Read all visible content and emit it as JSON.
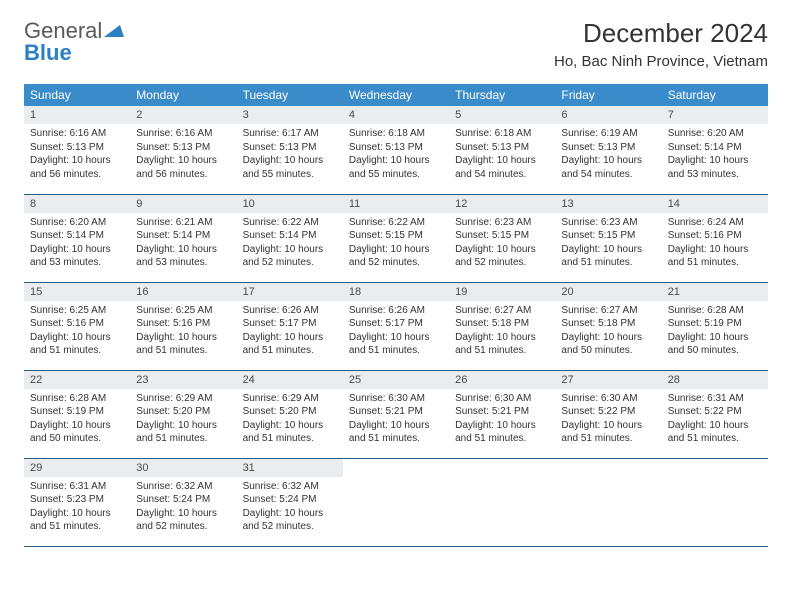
{
  "logo": {
    "text1": "General",
    "text2": "Blue",
    "color_general": "#5a5a5a",
    "color_blue": "#2b7fc3"
  },
  "header": {
    "month_title": "December 2024",
    "location": "Ho, Bac Ninh Province, Vietnam"
  },
  "colors": {
    "header_bg": "#3a8bc9",
    "header_text": "#ffffff",
    "daynum_bg": "#e9edf0",
    "row_border": "#2b5f8a",
    "body_text": "#333333"
  },
  "weekdays": [
    "Sunday",
    "Monday",
    "Tuesday",
    "Wednesday",
    "Thursday",
    "Friday",
    "Saturday"
  ],
  "days": [
    {
      "n": "1",
      "sunrise": "Sunrise: 6:16 AM",
      "sunset": "Sunset: 5:13 PM",
      "daylight": "Daylight: 10 hours and 56 minutes."
    },
    {
      "n": "2",
      "sunrise": "Sunrise: 6:16 AM",
      "sunset": "Sunset: 5:13 PM",
      "daylight": "Daylight: 10 hours and 56 minutes."
    },
    {
      "n": "3",
      "sunrise": "Sunrise: 6:17 AM",
      "sunset": "Sunset: 5:13 PM",
      "daylight": "Daylight: 10 hours and 55 minutes."
    },
    {
      "n": "4",
      "sunrise": "Sunrise: 6:18 AM",
      "sunset": "Sunset: 5:13 PM",
      "daylight": "Daylight: 10 hours and 55 minutes."
    },
    {
      "n": "5",
      "sunrise": "Sunrise: 6:18 AM",
      "sunset": "Sunset: 5:13 PM",
      "daylight": "Daylight: 10 hours and 54 minutes."
    },
    {
      "n": "6",
      "sunrise": "Sunrise: 6:19 AM",
      "sunset": "Sunset: 5:13 PM",
      "daylight": "Daylight: 10 hours and 54 minutes."
    },
    {
      "n": "7",
      "sunrise": "Sunrise: 6:20 AM",
      "sunset": "Sunset: 5:14 PM",
      "daylight": "Daylight: 10 hours and 53 minutes."
    },
    {
      "n": "8",
      "sunrise": "Sunrise: 6:20 AM",
      "sunset": "Sunset: 5:14 PM",
      "daylight": "Daylight: 10 hours and 53 minutes."
    },
    {
      "n": "9",
      "sunrise": "Sunrise: 6:21 AM",
      "sunset": "Sunset: 5:14 PM",
      "daylight": "Daylight: 10 hours and 53 minutes."
    },
    {
      "n": "10",
      "sunrise": "Sunrise: 6:22 AM",
      "sunset": "Sunset: 5:14 PM",
      "daylight": "Daylight: 10 hours and 52 minutes."
    },
    {
      "n": "11",
      "sunrise": "Sunrise: 6:22 AM",
      "sunset": "Sunset: 5:15 PM",
      "daylight": "Daylight: 10 hours and 52 minutes."
    },
    {
      "n": "12",
      "sunrise": "Sunrise: 6:23 AM",
      "sunset": "Sunset: 5:15 PM",
      "daylight": "Daylight: 10 hours and 52 minutes."
    },
    {
      "n": "13",
      "sunrise": "Sunrise: 6:23 AM",
      "sunset": "Sunset: 5:15 PM",
      "daylight": "Daylight: 10 hours and 51 minutes."
    },
    {
      "n": "14",
      "sunrise": "Sunrise: 6:24 AM",
      "sunset": "Sunset: 5:16 PM",
      "daylight": "Daylight: 10 hours and 51 minutes."
    },
    {
      "n": "15",
      "sunrise": "Sunrise: 6:25 AM",
      "sunset": "Sunset: 5:16 PM",
      "daylight": "Daylight: 10 hours and 51 minutes."
    },
    {
      "n": "16",
      "sunrise": "Sunrise: 6:25 AM",
      "sunset": "Sunset: 5:16 PM",
      "daylight": "Daylight: 10 hours and 51 minutes."
    },
    {
      "n": "17",
      "sunrise": "Sunrise: 6:26 AM",
      "sunset": "Sunset: 5:17 PM",
      "daylight": "Daylight: 10 hours and 51 minutes."
    },
    {
      "n": "18",
      "sunrise": "Sunrise: 6:26 AM",
      "sunset": "Sunset: 5:17 PM",
      "daylight": "Daylight: 10 hours and 51 minutes."
    },
    {
      "n": "19",
      "sunrise": "Sunrise: 6:27 AM",
      "sunset": "Sunset: 5:18 PM",
      "daylight": "Daylight: 10 hours and 51 minutes."
    },
    {
      "n": "20",
      "sunrise": "Sunrise: 6:27 AM",
      "sunset": "Sunset: 5:18 PM",
      "daylight": "Daylight: 10 hours and 50 minutes."
    },
    {
      "n": "21",
      "sunrise": "Sunrise: 6:28 AM",
      "sunset": "Sunset: 5:19 PM",
      "daylight": "Daylight: 10 hours and 50 minutes."
    },
    {
      "n": "22",
      "sunrise": "Sunrise: 6:28 AM",
      "sunset": "Sunset: 5:19 PM",
      "daylight": "Daylight: 10 hours and 50 minutes."
    },
    {
      "n": "23",
      "sunrise": "Sunrise: 6:29 AM",
      "sunset": "Sunset: 5:20 PM",
      "daylight": "Daylight: 10 hours and 51 minutes."
    },
    {
      "n": "24",
      "sunrise": "Sunrise: 6:29 AM",
      "sunset": "Sunset: 5:20 PM",
      "daylight": "Daylight: 10 hours and 51 minutes."
    },
    {
      "n": "25",
      "sunrise": "Sunrise: 6:30 AM",
      "sunset": "Sunset: 5:21 PM",
      "daylight": "Daylight: 10 hours and 51 minutes."
    },
    {
      "n": "26",
      "sunrise": "Sunrise: 6:30 AM",
      "sunset": "Sunset: 5:21 PM",
      "daylight": "Daylight: 10 hours and 51 minutes."
    },
    {
      "n": "27",
      "sunrise": "Sunrise: 6:30 AM",
      "sunset": "Sunset: 5:22 PM",
      "daylight": "Daylight: 10 hours and 51 minutes."
    },
    {
      "n": "28",
      "sunrise": "Sunrise: 6:31 AM",
      "sunset": "Sunset: 5:22 PM",
      "daylight": "Daylight: 10 hours and 51 minutes."
    },
    {
      "n": "29",
      "sunrise": "Sunrise: 6:31 AM",
      "sunset": "Sunset: 5:23 PM",
      "daylight": "Daylight: 10 hours and 51 minutes."
    },
    {
      "n": "30",
      "sunrise": "Sunrise: 6:32 AM",
      "sunset": "Sunset: 5:24 PM",
      "daylight": "Daylight: 10 hours and 52 minutes."
    },
    {
      "n": "31",
      "sunrise": "Sunrise: 6:32 AM",
      "sunset": "Sunset: 5:24 PM",
      "daylight": "Daylight: 10 hours and 52 minutes."
    }
  ]
}
